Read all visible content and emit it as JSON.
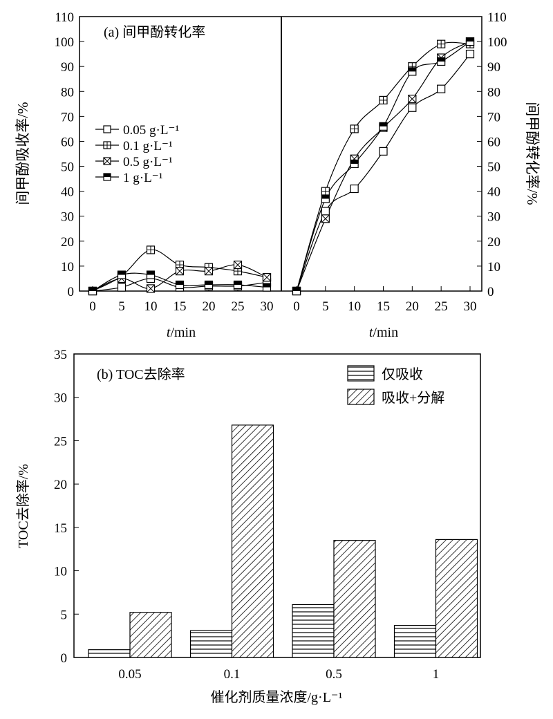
{
  "chart_data": [
    {
      "type": "line",
      "panel_label": "(a) 间甲酚转化率",
      "xlabel_italic": "t",
      "xlabel_rest": "/min",
      "left_ylabel": "间甲酚吸收率/%",
      "right_ylabel": "间甲酚转化率/%",
      "ylim": [
        0,
        110
      ],
      "yticks": [
        0,
        10,
        20,
        30,
        40,
        50,
        60,
        70,
        80,
        90,
        100,
        110
      ],
      "x": [
        0,
        5,
        10,
        15,
        20,
        25,
        30
      ],
      "legend_position": "left-middle",
      "series": [
        {
          "name": "0.05 g·L⁻¹",
          "marker": "open-square",
          "absorption": [
            0,
            1.5,
            5,
            1.5,
            2,
            2,
            3.5
          ],
          "conversion": [
            0,
            32,
            41,
            56,
            73.5,
            81,
            95
          ]
        },
        {
          "name": "0.1 g·L⁻¹",
          "marker": "plus-square",
          "absorption": [
            0,
            6,
            16.5,
            10.5,
            9.5,
            8,
            5.5
          ],
          "conversion": [
            0,
            40,
            65,
            76.5,
            90,
            99,
            99
          ]
        },
        {
          "name": "0.5 g·L⁻¹",
          "marker": "x-square",
          "absorption": [
            0,
            5,
            1,
            8,
            8,
            10.5,
            5.5
          ],
          "conversion": [
            0,
            29,
            53,
            65.5,
            77,
            93.5,
            100
          ]
        },
        {
          "name": "1 g·L⁻¹",
          "marker": "half-filled-square",
          "absorption": [
            0,
            6.5,
            6.5,
            2.5,
            2.5,
            2.5,
            1.5
          ],
          "conversion": [
            0,
            37,
            51,
            66,
            88,
            92,
            100
          ]
        }
      ]
    },
    {
      "type": "bar",
      "panel_label": "(b) TOC去除率",
      "categories": [
        "0.05",
        "0.1",
        "0.5",
        "1"
      ],
      "xlabel": "催化剂质量浓度/g·L⁻¹",
      "ylabel": "TOC去除率/%",
      "ylim": [
        0,
        35
      ],
      "yticks": [
        0,
        5,
        10,
        15,
        20,
        25,
        30,
        35
      ],
      "legend_position": "top-right",
      "series": [
        {
          "name": "仅吸收",
          "pattern": "horizontal-lines",
          "values": [
            0.9,
            3.1,
            6.1,
            3.7
          ]
        },
        {
          "name": "吸收+分解",
          "pattern": "diagonal-hatch",
          "values": [
            5.2,
            26.8,
            13.5,
            13.6
          ]
        }
      ]
    }
  ]
}
